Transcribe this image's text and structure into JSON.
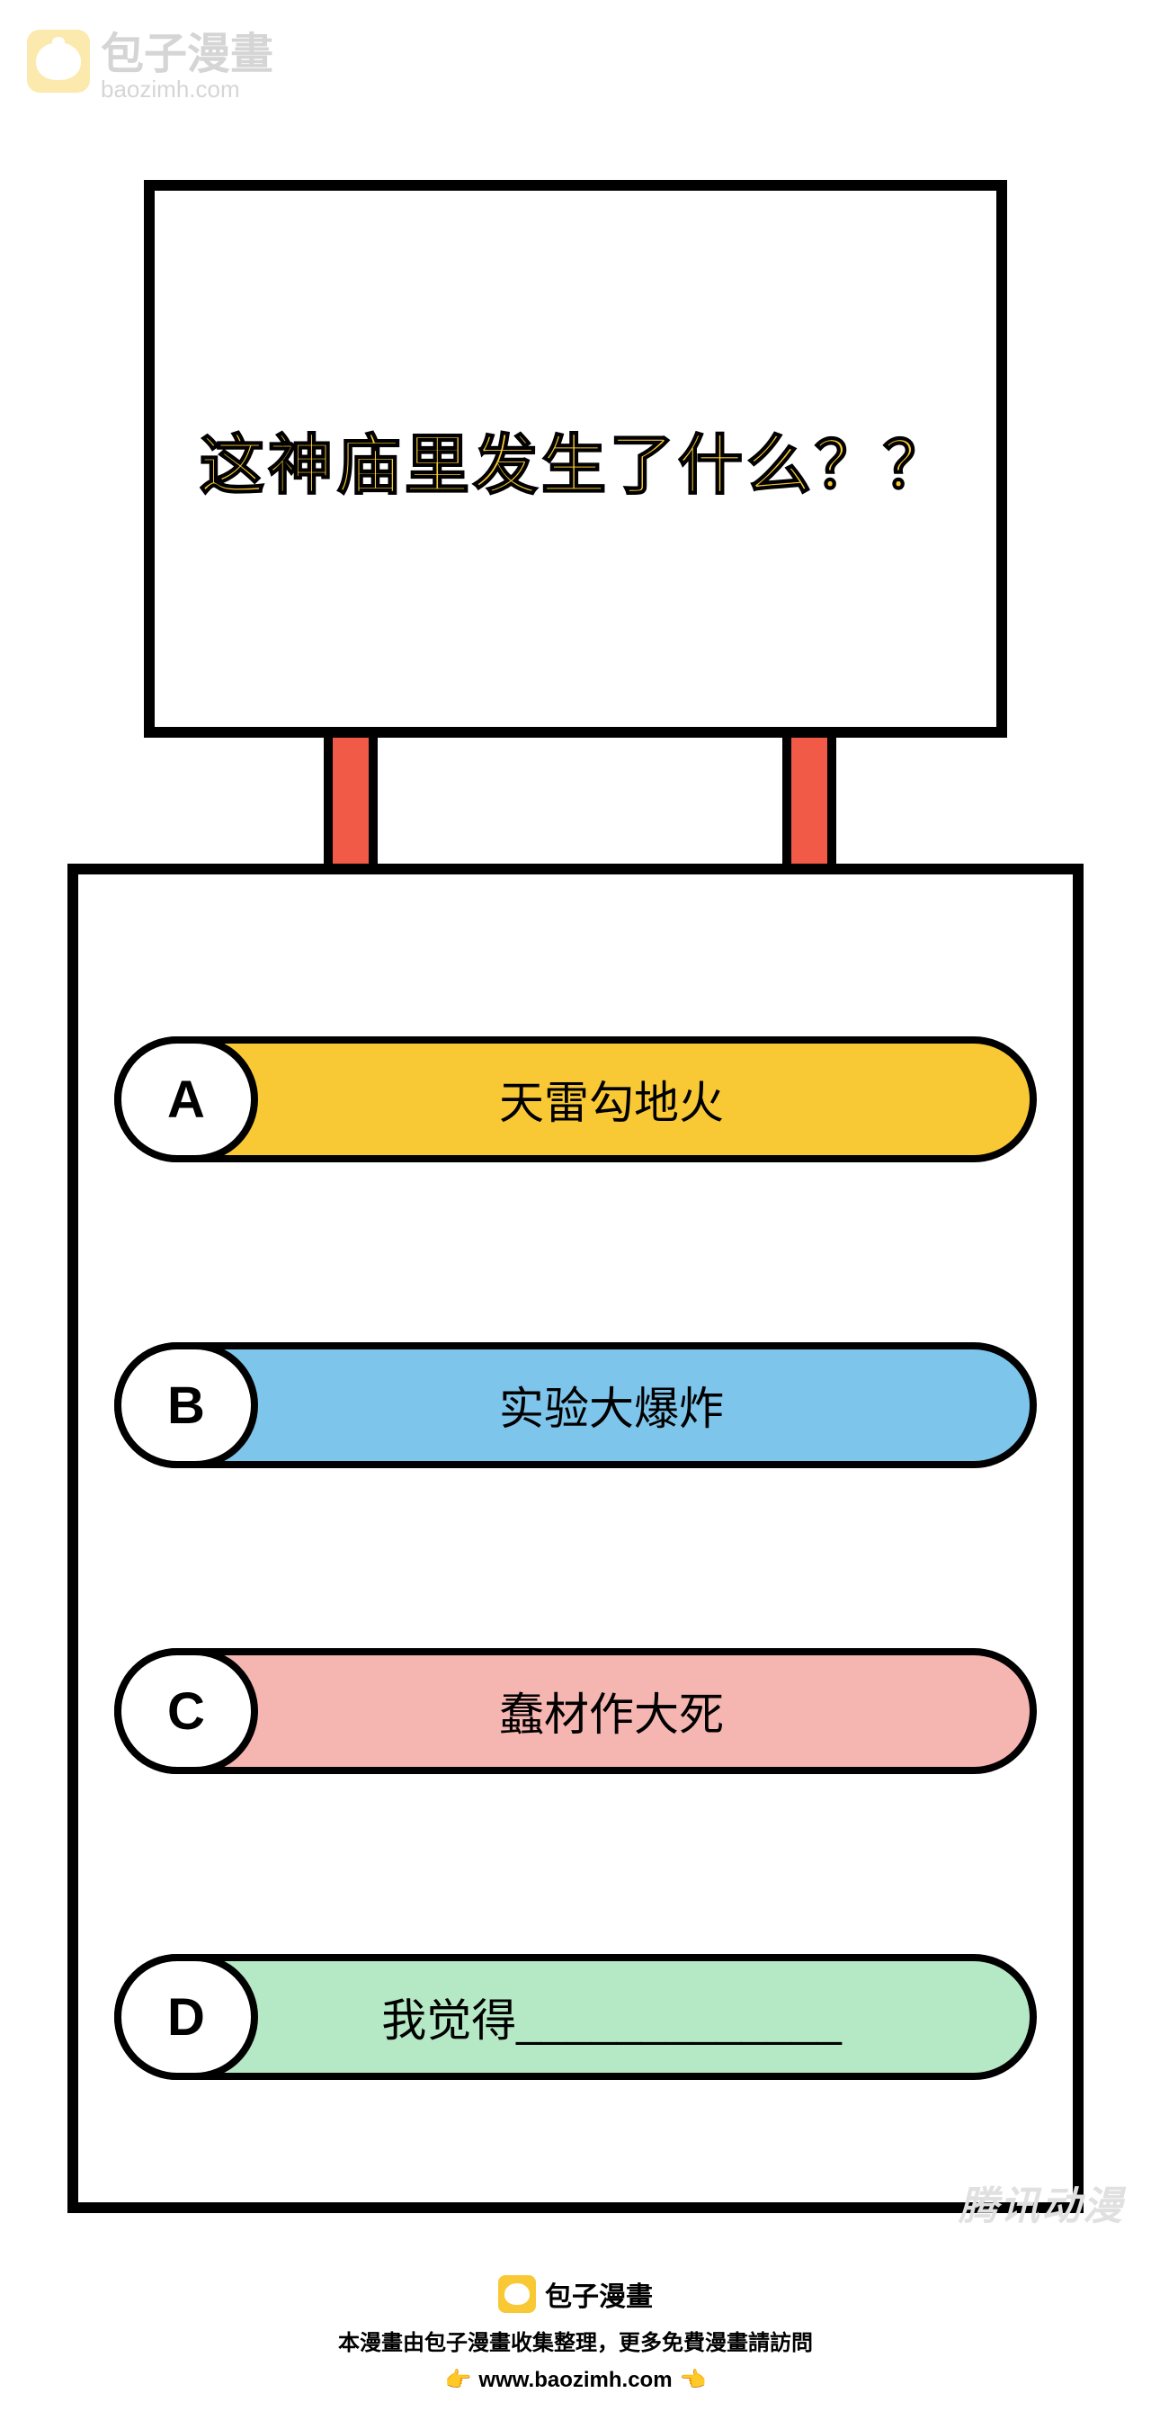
{
  "watermark": {
    "title": "包子漫畫",
    "url": "baozimh.com"
  },
  "question": {
    "text": "这神庙里发生了什么？？",
    "box_border_color": "#000000",
    "text_color": "#f9c935",
    "leg_color": "#f05a47"
  },
  "options": [
    {
      "letter": "A",
      "text": "天雷勾地火",
      "bg_color": "#f9c935"
    },
    {
      "letter": "B",
      "text": "实验大爆炸",
      "bg_color": "#7ec5eb"
    },
    {
      "letter": "C",
      "text": "蠢材作大死",
      "bg_color": "#f5b5b0"
    },
    {
      "letter": "D",
      "text": "我觉得_____________",
      "bg_color": "#b5e8c5"
    }
  ],
  "bottom_watermark": "腾讯动漫",
  "footer": {
    "brand": "包子漫畫",
    "desc": "本漫畫由包子漫畫收集整理，更多免費漫畫請訪問",
    "url": "www.baozimh.com",
    "hand_left": "👉",
    "hand_right": "👈"
  }
}
